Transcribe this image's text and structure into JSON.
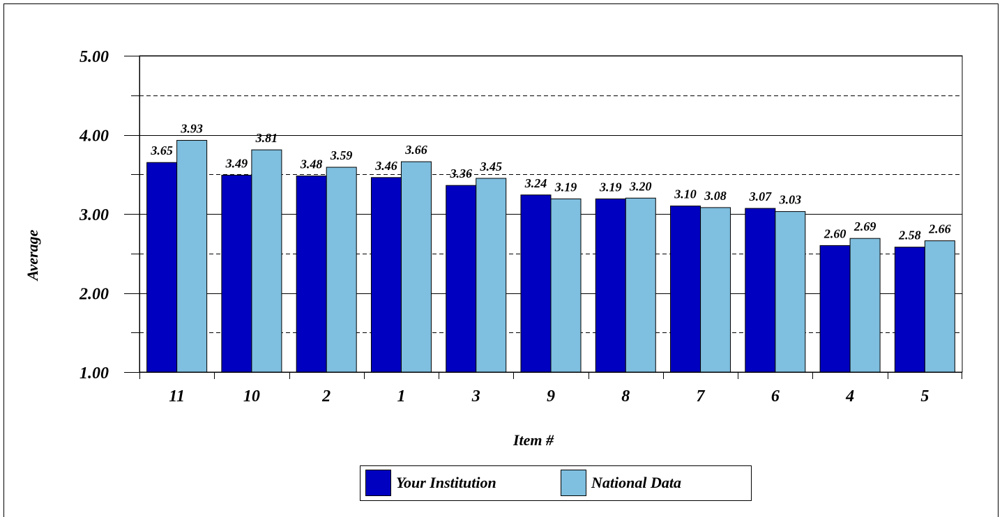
{
  "chart_data": {
    "type": "bar",
    "categories": [
      "11",
      "10",
      "2",
      "1",
      "3",
      "9",
      "8",
      "7",
      "6",
      "4",
      "5"
    ],
    "series": [
      {
        "name": "Your Institution",
        "color": "#0000C0",
        "values": [
          3.65,
          3.49,
          3.48,
          3.46,
          3.36,
          3.24,
          3.19,
          3.1,
          3.07,
          2.6,
          2.58
        ],
        "labels": [
          "3.65",
          "3.49",
          "3.48",
          "3.46",
          "3.36",
          "3.24",
          "3.19",
          "3.10",
          "3.07",
          "2.60",
          "2.58"
        ]
      },
      {
        "name": "National Data",
        "color": "#7FBFDF",
        "values": [
          3.93,
          3.81,
          3.59,
          3.66,
          3.45,
          3.19,
          3.2,
          3.08,
          3.03,
          2.69,
          2.66
        ],
        "labels": [
          "3.93",
          "3.81",
          "3.59",
          "3.66",
          "3.45",
          "3.19",
          "3.20",
          "3.08",
          "3.03",
          "2.69",
          "2.66"
        ]
      }
    ],
    "xlabel": "Item #",
    "ylabel": "Average",
    "ylim": [
      1,
      5
    ],
    "yticks": [
      "1.00",
      "2.00",
      "3.00",
      "4.00",
      "5.00"
    ],
    "grid": "major solid, minor dashed at 0.5 intervals",
    "legend_position": "bottom"
  }
}
